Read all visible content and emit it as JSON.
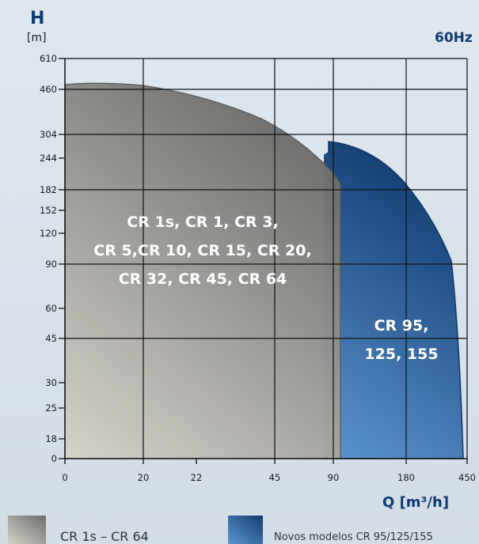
{
  "chart_data": {
    "type": "area",
    "title": "",
    "frequency_label": "60Hz",
    "ylabel": "H",
    "yunit": "[m]",
    "xlabel": "Q [m³/h]",
    "y_ticks": [
      "0",
      "18",
      "25",
      "30",
      "45",
      "60",
      "90",
      "120",
      "152",
      "182",
      "244",
      "304",
      "460",
      "610"
    ],
    "x_ticks": [
      "0",
      "20",
      "22",
      "45",
      "90",
      "180",
      "450"
    ],
    "grid": true,
    "legend_position": "bottom",
    "series": [
      {
        "name": "CR 1s – CR 64",
        "color": "#8a8a86",
        "label_lines": [
          "CR 1s, CR 1, CR 3,",
          "CR 5,CR 10, CR 15, CR 20,",
          "CR 32, CR 45, CR 64"
        ],
        "envelope": [
          [
            0,
            470
          ],
          [
            5,
            472
          ],
          [
            20,
            445
          ],
          [
            22,
            420
          ],
          [
            45,
            340
          ],
          [
            90,
            210
          ],
          [
            92,
            196
          ],
          [
            94,
            0
          ]
        ]
      },
      {
        "name": "Novos modelos  CR 95/125/155",
        "color": "#1d5a99",
        "label_lines": [
          "CR 95,",
          "125, 155"
        ],
        "envelope": [
          [
            90,
            285
          ],
          [
            120,
            270
          ],
          [
            180,
            195
          ],
          [
            280,
            95
          ],
          [
            350,
            45
          ],
          [
            440,
            0
          ]
        ]
      }
    ]
  }
}
